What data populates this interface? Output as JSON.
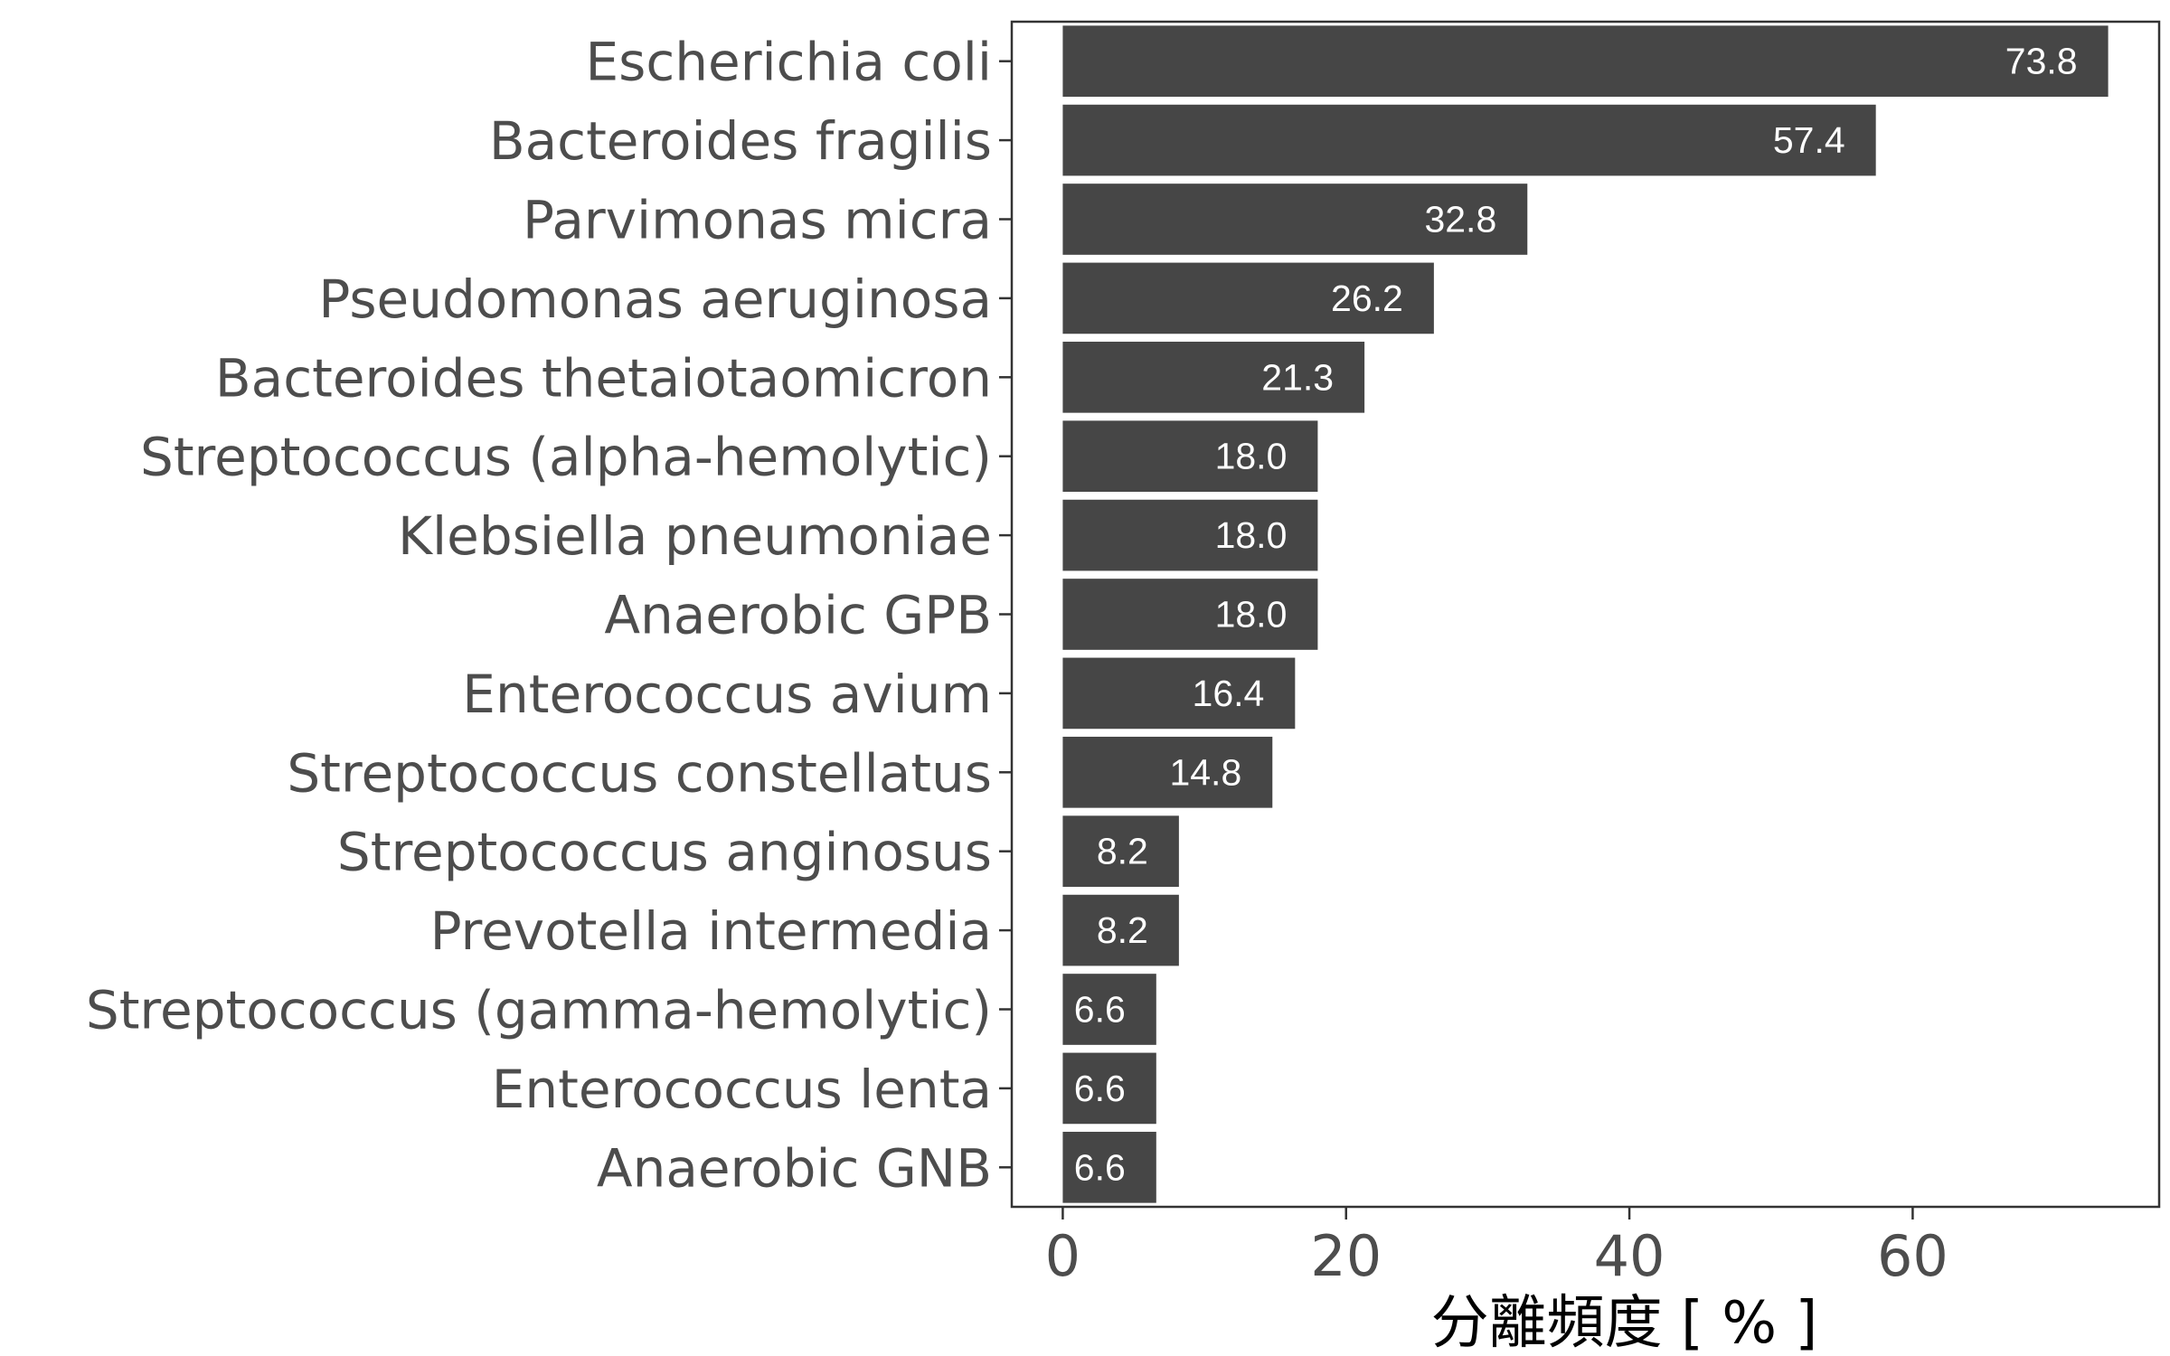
{
  "chart_data": {
    "type": "bar",
    "orientation": "horizontal",
    "categories": [
      "Escherichia coli",
      "Bacteroides fragilis",
      "Parvimonas micra",
      "Pseudomonas aeruginosa",
      "Bacteroides thetaiotaomicron",
      "Streptococcus (alpha-hemolytic)",
      "Klebsiella pneumoniae",
      "Anaerobic GPB",
      "Enterococcus avium",
      "Streptococcus constellatus",
      "Streptococcus anginosus",
      "Prevotella intermedia",
      "Streptococcus (gamma-hemolytic)",
      "Enterococcus lenta",
      "Anaerobic GNB"
    ],
    "values": [
      73.8,
      57.4,
      32.8,
      26.2,
      21.3,
      18.0,
      18.0,
      18.0,
      16.4,
      14.8,
      8.2,
      8.2,
      6.6,
      6.6,
      6.6
    ],
    "value_labels": [
      "73.8",
      "57.4",
      "32.8",
      "26.2",
      "21.3",
      "18.0",
      "18.0",
      "18.0",
      "16.4",
      "14.8",
      "8.2",
      "8.2",
      "6.6",
      "6.6",
      "6.6"
    ],
    "title": "",
    "xlabel": "分離頻度 [ % ]",
    "ylabel": "",
    "xlim": [
      -3.6,
      77.4
    ],
    "x_ticks": [
      0,
      20,
      40,
      60
    ],
    "x_tick_labels": [
      "0",
      "20",
      "40",
      "60"
    ],
    "grid": false,
    "legend": "none",
    "bar_color": "#464646",
    "label_color": "#ffffff",
    "axis_text_color": "#4d4d4d"
  }
}
